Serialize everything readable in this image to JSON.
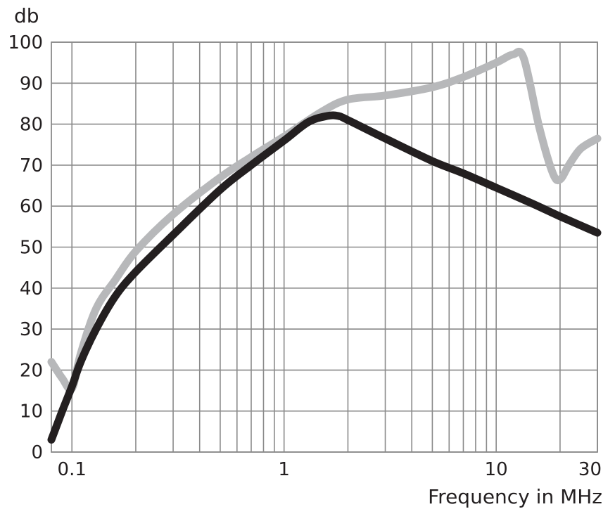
{
  "chart_data": {
    "type": "line",
    "title": "",
    "ylabel": "db",
    "xlabel": "Frequency in MHz",
    "x_scale": "log",
    "xlim": [
      0.08,
      30
    ],
    "ylim": [
      0,
      100
    ],
    "x_ticks": [
      {
        "value": 0.1,
        "label": "0.1"
      },
      {
        "value": 1,
        "label": "1"
      },
      {
        "value": 10,
        "label": "10"
      },
      {
        "value": 30,
        "label": "30"
      }
    ],
    "y_ticks": [
      {
        "value": 0,
        "label": "0"
      },
      {
        "value": 10,
        "label": "10"
      },
      {
        "value": 20,
        "label": "20"
      },
      {
        "value": 30,
        "label": "30"
      },
      {
        "value": 40,
        "label": "40"
      },
      {
        "value": 50,
        "label": "50"
      },
      {
        "value": 60,
        "label": "60"
      },
      {
        "value": 70,
        "label": "70"
      },
      {
        "value": 80,
        "label": "80"
      },
      {
        "value": 90,
        "label": "90"
      },
      {
        "value": 100,
        "label": "100"
      }
    ],
    "grid": true,
    "legend": "none",
    "series": [
      {
        "color": "#b7b8ba",
        "x": [
          0.08,
          0.09,
          0.1,
          0.11,
          0.13,
          0.16,
          0.2,
          0.3,
          0.5,
          0.7,
          1.0,
          1.5,
          2.0,
          3.0,
          5.0,
          7.0,
          10.0,
          12.0,
          13.5,
          16.0,
          18.5,
          20.0,
          22.0,
          25.0,
          30.0
        ],
        "y": [
          22,
          18,
          15.5,
          24,
          35,
          42,
          49,
          58,
          67,
          72,
          77,
          83,
          86,
          87,
          89,
          91.5,
          95,
          97,
          96,
          79,
          68,
          66.5,
          70,
          74,
          76.5
        ]
      },
      {
        "color": "#231f20",
        "x": [
          0.08,
          0.09,
          0.1,
          0.11,
          0.13,
          0.16,
          0.2,
          0.3,
          0.5,
          0.7,
          1.0,
          1.3,
          1.6,
          1.8,
          2.0,
          3.0,
          5.0,
          7.0,
          10.0,
          15.0,
          20.0,
          30.0
        ],
        "y": [
          3,
          10,
          16,
          22,
          30,
          38,
          44,
          53,
          64,
          70,
          76,
          80.5,
          82,
          82,
          81,
          76.5,
          71,
          68,
          64.5,
          60.5,
          57.5,
          53.5
        ]
      }
    ]
  }
}
